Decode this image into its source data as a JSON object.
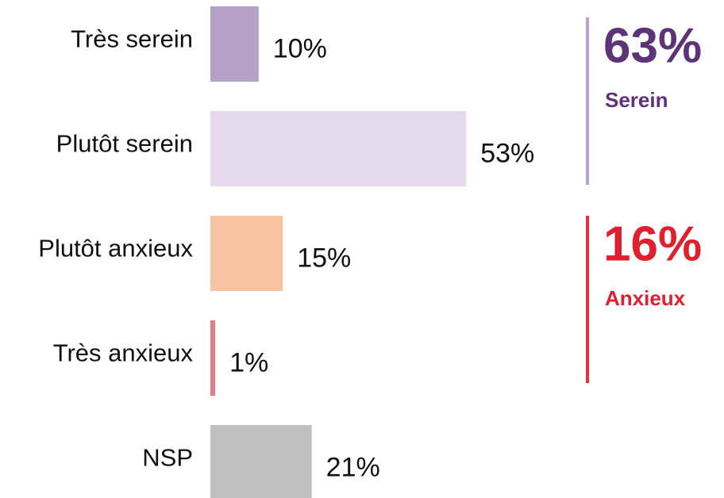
{
  "chart_data": {
    "type": "bar",
    "orientation": "horizontal",
    "categories": [
      "Très serein",
      "Plutôt serein",
      "Plutôt anxieux",
      "Très anxieux",
      "NSP"
    ],
    "values": [
      10,
      53,
      15,
      1,
      21
    ],
    "value_labels": [
      "10%",
      "53%",
      "15%",
      "1%",
      "21%"
    ],
    "colors": [
      "#b5a0c6",
      "#e5d9ee",
      "#f7c3a3",
      "#e57d87",
      "#bfbfbf"
    ],
    "annotations": [
      {
        "label": "63%",
        "text": "Serein",
        "color": "#5e3378",
        "line_color": "#b9a3cb"
      },
      {
        "label": "16%",
        "text": "Anxieux",
        "color": "#e0202e",
        "line_color": "#e0303c"
      }
    ]
  }
}
